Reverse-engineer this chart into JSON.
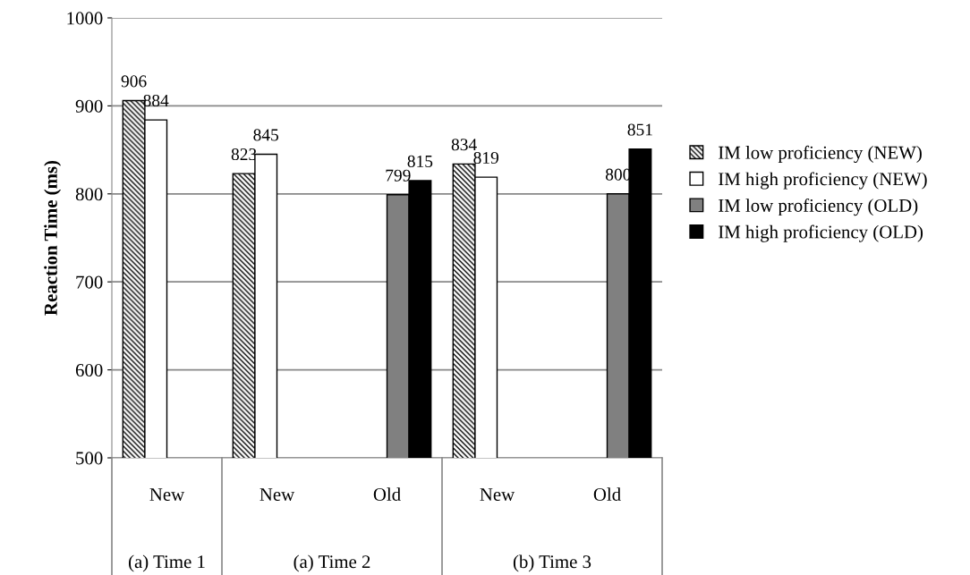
{
  "chart_data": {
    "type": "bar",
    "ylabel": "Reaction Time (ms)",
    "categories": [
      "New",
      "New",
      "Old",
      "New",
      "Old"
    ],
    "series": [
      {
        "name": "IM low proficiency (NEW)",
        "color": "#000000",
        "values": [
          906,
          823,
          null,
          834,
          null
        ]
      },
      {
        "name": "IM high proficiency (NEW)",
        "color": "#ffffff",
        "values": [
          884,
          845,
          null,
          819,
          null
        ]
      },
      {
        "name": "IM low proficiency (OLD)",
        "color": "#808080",
        "values": [
          null,
          null,
          799,
          null,
          800
        ]
      },
      {
        "name": "IM high proficiency (OLD)",
        "color": "#000000",
        "values": [
          null,
          null,
          815,
          null,
          851
        ]
      }
    ],
    "ylim": [
      500,
      1000
    ],
    "yticks": [
      500,
      600,
      700,
      800,
      900,
      1000
    ],
    "grid": "y",
    "legend": "right",
    "data_labels": true,
    "annotations": [
      "(a) Time 1",
      "(a) Time 2",
      "(b) Time 3"
    ]
  }
}
